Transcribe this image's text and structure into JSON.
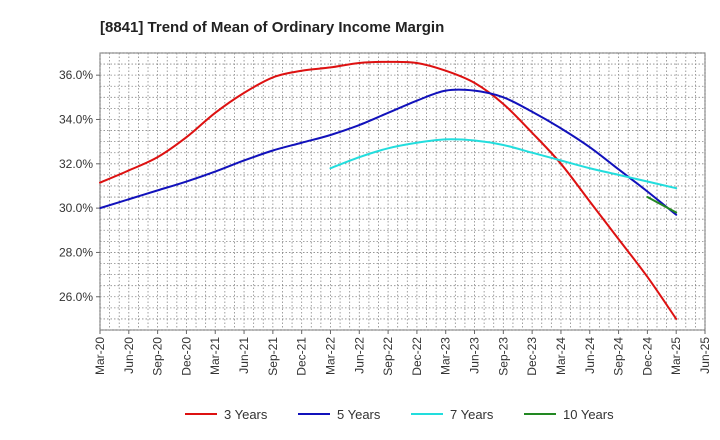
{
  "chart_data": {
    "type": "line",
    "title": "[8841]  Trend of Mean of Ordinary Income Margin",
    "xlabel": "",
    "ylabel": "",
    "x_ticks": [
      "Mar-20",
      "Jun-20",
      "Sep-20",
      "Dec-20",
      "Mar-21",
      "Jun-21",
      "Sep-21",
      "Dec-21",
      "Mar-22",
      "Jun-22",
      "Sep-22",
      "Dec-22",
      "Mar-23",
      "Jun-23",
      "Sep-23",
      "Dec-23",
      "Mar-24",
      "Jun-24",
      "Sep-24",
      "Dec-24",
      "Mar-25",
      "Jun-25"
    ],
    "y_ticks": [
      "26.0%",
      "28.0%",
      "30.0%",
      "32.0%",
      "34.0%",
      "36.0%"
    ],
    "y_tick_values": [
      26,
      28,
      30,
      32,
      34,
      36
    ],
    "ylim": [
      24.5,
      37.0
    ],
    "grid": true,
    "legend_position": "bottom",
    "series": [
      {
        "name": "3 Years",
        "color": "#dd1111",
        "x": [
          "Mar-20",
          "Jun-20",
          "Sep-20",
          "Dec-20",
          "Mar-21",
          "Jun-21",
          "Sep-21",
          "Dec-21",
          "Mar-22",
          "Jun-22",
          "Sep-22",
          "Dec-22",
          "Mar-23",
          "Jun-23",
          "Sep-23",
          "Dec-23",
          "Mar-24",
          "Jun-24",
          "Sep-24",
          "Dec-24",
          "Mar-25"
        ],
        "values": [
          31.15,
          31.7,
          32.3,
          33.2,
          34.3,
          35.2,
          35.9,
          36.2,
          36.35,
          36.55,
          36.6,
          36.55,
          36.2,
          35.65,
          34.7,
          33.4,
          32.0,
          30.3,
          28.6,
          26.9,
          25.0
        ]
      },
      {
        "name": "5 Years",
        "color": "#1111bb",
        "x": [
          "Mar-20",
          "Jun-20",
          "Sep-20",
          "Dec-20",
          "Mar-21",
          "Jun-21",
          "Sep-21",
          "Dec-21",
          "Mar-22",
          "Jun-22",
          "Sep-22",
          "Dec-22",
          "Mar-23",
          "Jun-23",
          "Sep-23",
          "Dec-23",
          "Mar-24",
          "Jun-24",
          "Sep-24",
          "Dec-24",
          "Mar-25"
        ],
        "values": [
          30.0,
          30.4,
          30.8,
          31.2,
          31.65,
          32.15,
          32.6,
          32.95,
          33.3,
          33.75,
          34.3,
          34.85,
          35.3,
          35.3,
          35.0,
          34.35,
          33.6,
          32.75,
          31.75,
          30.75,
          29.7
        ]
      },
      {
        "name": "7 Years",
        "color": "#22dddd",
        "x": [
          "Mar-22",
          "Jun-22",
          "Sep-22",
          "Dec-22",
          "Mar-23",
          "Jun-23",
          "Sep-23",
          "Dec-23",
          "Mar-24",
          "Jun-24",
          "Sep-24",
          "Dec-24",
          "Mar-25"
        ],
        "values": [
          31.8,
          32.3,
          32.7,
          32.95,
          33.1,
          33.05,
          32.85,
          32.5,
          32.15,
          31.8,
          31.5,
          31.2,
          30.9
        ]
      },
      {
        "name": "10 Years",
        "color": "#228822",
        "x": [
          "Dec-24",
          "Mar-25"
        ],
        "values": [
          30.5,
          29.8
        ]
      }
    ]
  }
}
